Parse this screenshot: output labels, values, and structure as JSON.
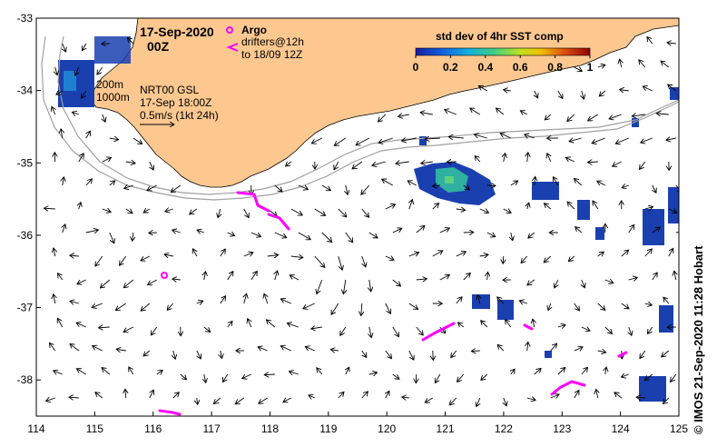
{
  "header": {
    "date": "17-Sep-2020",
    "time": "00Z"
  },
  "legend": {
    "argo_label": "Argo",
    "drifters_label": "drifters@12h",
    "drifters_to": "to 18/09 12Z",
    "argo_color": "#ff00ff",
    "drifter_color": "#ff00ff"
  },
  "colorbar": {
    "title": "std dev of 4hr SST comp",
    "ticks": [
      "0",
      "0.2",
      "0.4",
      "0.6",
      "0.8",
      "1"
    ]
  },
  "annotations": {
    "iso200": "200m",
    "iso1000": "1000m",
    "model": "NRT00 GSL",
    "valid_time": "17-Sep 18:00Z",
    "scale": "0.5m/s (1kt 24h)"
  },
  "credit": "© IMOS 21-Sep-2020 11:28 Hobart",
  "axes": {
    "x_ticks": [
      "114",
      "115",
      "116",
      "117",
      "118",
      "119",
      "120",
      "121",
      "122",
      "123",
      "124",
      "125"
    ],
    "y_ticks": [
      "-33",
      "-34",
      "-35",
      "-36",
      "-37",
      "-38"
    ],
    "xlim": [
      114,
      125
    ],
    "ylim": [
      -38.5,
      -33
    ]
  },
  "colors": {
    "land": "#fcc890",
    "vector": "#000000",
    "isobath": "#a0a0a0",
    "sst_low": "#1030a0",
    "sst_mid": "#30c0a0"
  }
}
